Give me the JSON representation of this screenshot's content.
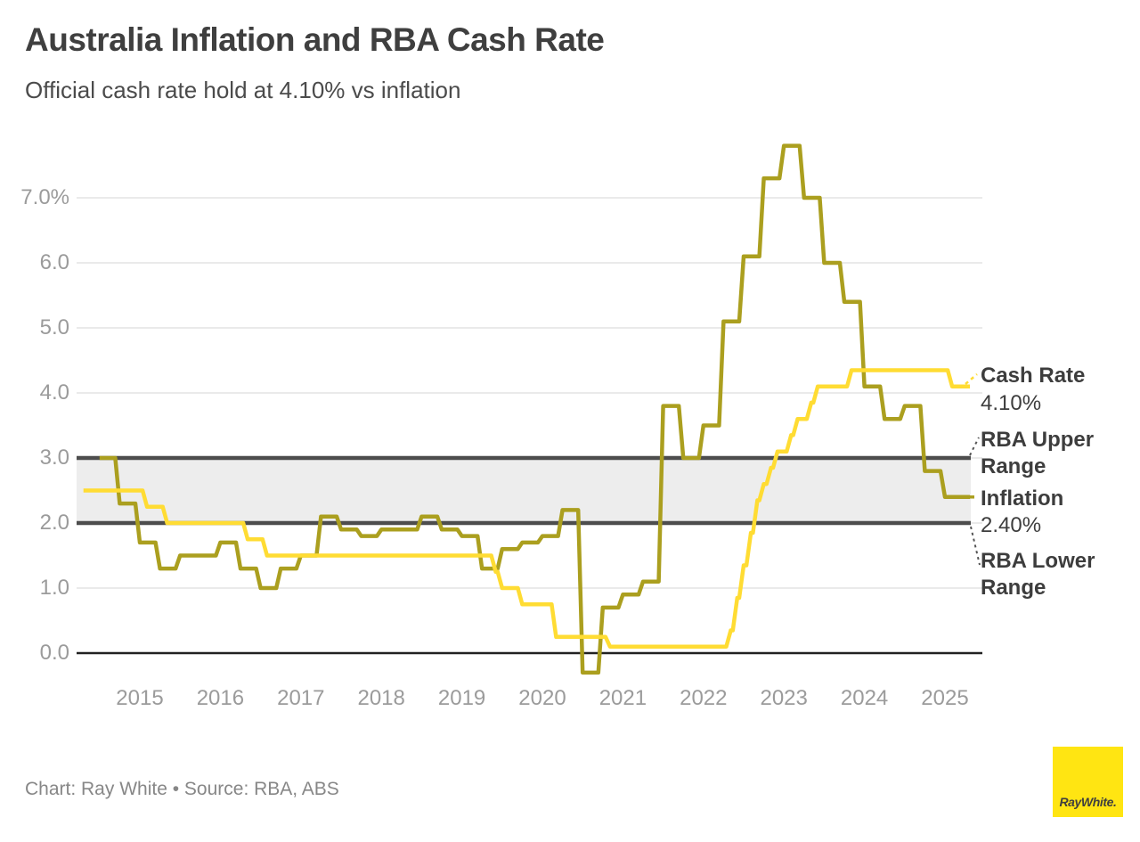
{
  "header": {
    "title": "Australia Inflation and RBA Cash Rate",
    "subtitle": "Official cash rate hold at 4.10% vs inflation"
  },
  "footer": {
    "credit": "Chart: Ray White • Source: RBA, ABS"
  },
  "logo": {
    "text": "RayWhite."
  },
  "colors": {
    "cash_rate": "#FFDC33",
    "inflation": "#AB9F1F",
    "band_fill": "#EDEDED",
    "band_border": "#4D4D4D",
    "grid": "#E3E3E3",
    "zero_axis": "#222222",
    "leader": "#555555",
    "logo_bg": "#FFE512",
    "tick_text": "#9B9B9B",
    "label_text": "#3D3D3D"
  },
  "chart_data": {
    "type": "line",
    "title": "Australia Inflation and RBA Cash Rate",
    "subtitle": "Official cash rate hold at 4.10% vs inflation",
    "xlabel": "",
    "ylabel": "%",
    "x_range": [
      2014.25,
      2025.35
    ],
    "ylim": [
      -0.5,
      8
    ],
    "grid": true,
    "legend_position": "right-edge-annotations",
    "x_ticks": [
      {
        "label": "2015",
        "value": 2015
      },
      {
        "label": "2016",
        "value": 2016
      },
      {
        "label": "2017",
        "value": 2017
      },
      {
        "label": "2018",
        "value": 2018
      },
      {
        "label": "2019",
        "value": 2019
      },
      {
        "label": "2020",
        "value": 2020
      },
      {
        "label": "2021",
        "value": 2021
      },
      {
        "label": "2022",
        "value": 2022
      },
      {
        "label": "2023",
        "value": 2023
      },
      {
        "label": "2024",
        "value": 2024
      },
      {
        "label": "2025",
        "value": 2025
      }
    ],
    "y_ticks": [
      {
        "label": "0.0",
        "value": 0
      },
      {
        "label": "1.0",
        "value": 1
      },
      {
        "label": "2.0",
        "value": 2
      },
      {
        "label": "3.0",
        "value": 3
      },
      {
        "label": "4.0",
        "value": 4
      },
      {
        "label": "5.0",
        "value": 5
      },
      {
        "label": "6.0",
        "value": 6
      },
      {
        "label": "7.0%",
        "value": 7
      }
    ],
    "band": {
      "name": "RBA target range",
      "from": 2.0,
      "to": 3.0
    },
    "series": [
      {
        "name": "Inflation",
        "type": "step",
        "color_key": "inflation",
        "current_value_label": "2.40%",
        "start": 2014.5,
        "interval": 0.25,
        "end": 2025.31,
        "values": [
          3.0,
          2.3,
          1.7,
          1.3,
          1.5,
          1.5,
          1.7,
          1.3,
          1.0,
          1.3,
          1.5,
          2.1,
          1.9,
          1.8,
          1.9,
          1.9,
          2.1,
          1.9,
          1.8,
          1.3,
          1.6,
          1.7,
          1.8,
          2.2,
          -0.3,
          0.7,
          0.9,
          1.1,
          3.8,
          3.0,
          3.5,
          5.1,
          6.1,
          7.3,
          7.8,
          7.0,
          6.0,
          5.4,
          4.1,
          3.6,
          3.8,
          2.8,
          2.4,
          2.4
        ]
      },
      {
        "name": "Cash Rate",
        "type": "step",
        "color_key": "cash_rate",
        "current_value_label": "4.10%",
        "end": 2025.31,
        "step_points": [
          [
            2014.3,
            2.5
          ],
          [
            2015.09,
            2.25
          ],
          [
            2015.34,
            2.0
          ],
          [
            2016.34,
            1.75
          ],
          [
            2016.58,
            1.5
          ],
          [
            2019.42,
            1.25
          ],
          [
            2019.5,
            1.0
          ],
          [
            2019.75,
            0.75
          ],
          [
            2020.17,
            0.25
          ],
          [
            2020.84,
            0.1
          ],
          [
            2022.34,
            0.35
          ],
          [
            2022.42,
            0.85
          ],
          [
            2022.5,
            1.35
          ],
          [
            2022.59,
            1.85
          ],
          [
            2022.67,
            2.35
          ],
          [
            2022.75,
            2.6
          ],
          [
            2022.84,
            2.85
          ],
          [
            2022.92,
            3.1
          ],
          [
            2023.09,
            3.35
          ],
          [
            2023.17,
            3.6
          ],
          [
            2023.34,
            3.85
          ],
          [
            2023.42,
            4.1
          ],
          [
            2023.84,
            4.35
          ],
          [
            2025.09,
            4.1
          ]
        ]
      }
    ],
    "annotations": [
      {
        "label": "Cash Rate",
        "value_label": "4.10%"
      },
      {
        "label": "RBA Upper Range"
      },
      {
        "label": "Inflation",
        "value_label": "2.40%"
      },
      {
        "label": "RBA Lower Range"
      }
    ]
  }
}
